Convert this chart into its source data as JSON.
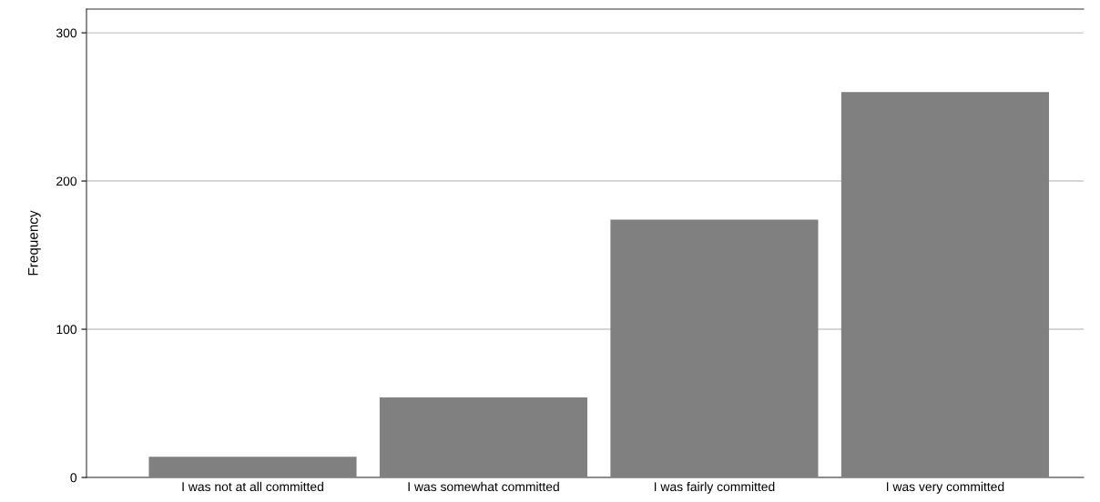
{
  "chart_data": {
    "type": "bar",
    "ylabel": "Frequency",
    "categories": [
      "I was not at all committed",
      "I was somewhat committed",
      "I was fairly committed",
      "I was very committed"
    ],
    "values": [
      14,
      54,
      174,
      260
    ],
    "color": "#808080",
    "ylim": [
      0,
      316
    ],
    "yticks": [
      0,
      100,
      200,
      300
    ],
    "grid": "y"
  }
}
